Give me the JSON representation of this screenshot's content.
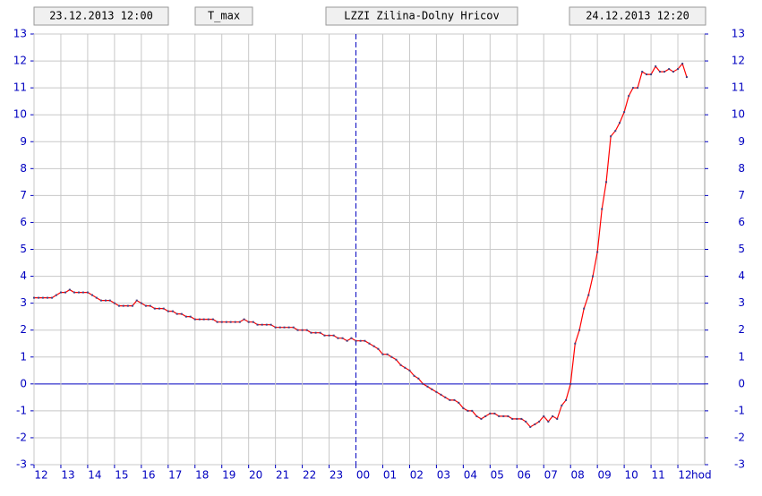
{
  "header": {
    "start": "23.12.2013 12:00",
    "parameter": "T_max",
    "station": "LZZI Zilina-Dolny Hricov",
    "end": "24.12.2013 12:20"
  },
  "chart_data": {
    "type": "line",
    "xlabel": "hod",
    "color": "#ff0000",
    "marker_color": "#404080",
    "grid": true,
    "xlim": [
      12,
      37
    ],
    "ylim": [
      -3,
      13
    ],
    "yticks": [
      -3,
      -2,
      -1,
      0,
      1,
      2,
      3,
      4,
      5,
      6,
      7,
      8,
      9,
      10,
      11,
      12,
      13
    ],
    "xticks": [
      {
        "value": 12,
        "label": "12"
      },
      {
        "value": 13,
        "label": "13"
      },
      {
        "value": 14,
        "label": "14"
      },
      {
        "value": 15,
        "label": "15"
      },
      {
        "value": 16,
        "label": "16"
      },
      {
        "value": 17,
        "label": "17"
      },
      {
        "value": 18,
        "label": "18"
      },
      {
        "value": 19,
        "label": "19"
      },
      {
        "value": 20,
        "label": "20"
      },
      {
        "value": 21,
        "label": "21"
      },
      {
        "value": 22,
        "label": "22"
      },
      {
        "value": 23,
        "label": "23"
      },
      {
        "value": 24,
        "label": "00"
      },
      {
        "value": 25,
        "label": "01"
      },
      {
        "value": 26,
        "label": "02"
      },
      {
        "value": 27,
        "label": "03"
      },
      {
        "value": 28,
        "label": "04"
      },
      {
        "value": 29,
        "label": "05"
      },
      {
        "value": 30,
        "label": "06"
      },
      {
        "value": 31,
        "label": "07"
      },
      {
        "value": 32,
        "label": "08"
      },
      {
        "value": 33,
        "label": "09"
      },
      {
        "value": 34,
        "label": "10"
      },
      {
        "value": 35,
        "label": "11"
      },
      {
        "value": 36,
        "label": "12"
      }
    ],
    "x": [
      12,
      12.17,
      12.33,
      12.5,
      12.67,
      12.83,
      13,
      13.17,
      13.33,
      13.5,
      13.67,
      13.83,
      14,
      14.17,
      14.33,
      14.5,
      14.67,
      14.83,
      15,
      15.17,
      15.33,
      15.5,
      15.67,
      15.83,
      16,
      16.17,
      16.33,
      16.5,
      16.67,
      16.83,
      17,
      17.17,
      17.33,
      17.5,
      17.67,
      17.83,
      18,
      18.17,
      18.33,
      18.5,
      18.67,
      18.83,
      19,
      19.17,
      19.33,
      19.5,
      19.67,
      19.83,
      20,
      20.17,
      20.33,
      20.5,
      20.67,
      20.83,
      21,
      21.17,
      21.33,
      21.5,
      21.67,
      21.83,
      22,
      22.17,
      22.33,
      22.5,
      22.67,
      22.83,
      23,
      23.17,
      23.33,
      23.5,
      23.67,
      23.83,
      24,
      24.17,
      24.33,
      24.5,
      24.67,
      24.83,
      25,
      25.17,
      25.33,
      25.5,
      25.67,
      25.83,
      26,
      26.17,
      26.33,
      26.5,
      26.67,
      26.83,
      27,
      27.17,
      27.33,
      27.5,
      27.67,
      27.83,
      28,
      28.17,
      28.33,
      28.5,
      28.67,
      28.83,
      29,
      29.17,
      29.33,
      29.5,
      29.67,
      29.83,
      30,
      30.17,
      30.33,
      30.5,
      30.67,
      30.83,
      31,
      31.17,
      31.33,
      31.5,
      31.67,
      31.83,
      32,
      32.17,
      32.33,
      32.5,
      32.67,
      32.83,
      33,
      33.17,
      33.33,
      33.5,
      33.67,
      33.83,
      34,
      34.17,
      34.33,
      34.5,
      34.67,
      34.83,
      35,
      35.17,
      35.33,
      35.5,
      35.67,
      35.83,
      36,
      36.17,
      36.33
    ],
    "values": [
      3.2,
      3.2,
      3.2,
      3.2,
      3.2,
      3.3,
      3.4,
      3.4,
      3.5,
      3.4,
      3.4,
      3.4,
      3.4,
      3.3,
      3.2,
      3.1,
      3.1,
      3.1,
      3.0,
      2.9,
      2.9,
      2.9,
      2.9,
      3.1,
      3.0,
      2.9,
      2.9,
      2.8,
      2.8,
      2.8,
      2.7,
      2.7,
      2.6,
      2.6,
      2.5,
      2.5,
      2.4,
      2.4,
      2.4,
      2.4,
      2.4,
      2.3,
      2.3,
      2.3,
      2.3,
      2.3,
      2.3,
      2.4,
      2.3,
      2.3,
      2.2,
      2.2,
      2.2,
      2.2,
      2.1,
      2.1,
      2.1,
      2.1,
      2.1,
      2.0,
      2.0,
      2.0,
      1.9,
      1.9,
      1.9,
      1.8,
      1.8,
      1.8,
      1.7,
      1.7,
      1.6,
      1.7,
      1.6,
      1.6,
      1.6,
      1.5,
      1.4,
      1.3,
      1.1,
      1.1,
      1.0,
      0.9,
      0.7,
      0.6,
      0.5,
      0.3,
      0.2,
      0.0,
      -0.1,
      -0.2,
      -0.3,
      -0.4,
      -0.5,
      -0.6,
      -0.6,
      -0.7,
      -0.9,
      -1.0,
      -1.0,
      -1.2,
      -1.3,
      -1.2,
      -1.1,
      -1.1,
      -1.2,
      -1.2,
      -1.2,
      -1.3,
      -1.3,
      -1.3,
      -1.4,
      -1.6,
      -1.5,
      -1.4,
      -1.2,
      -1.4,
      -1.2,
      -1.3,
      -0.8,
      -0.6,
      0.0,
      1.5,
      2.0,
      2.8,
      3.3,
      4.0,
      4.9,
      6.5,
      7.5,
      9.2,
      9.4,
      9.7,
      10.1,
      10.7,
      11.0,
      11.0,
      11.6,
      11.5,
      11.5,
      11.8,
      11.6,
      11.6,
      11.7,
      11.6,
      11.7,
      11.9,
      11.4
    ]
  }
}
